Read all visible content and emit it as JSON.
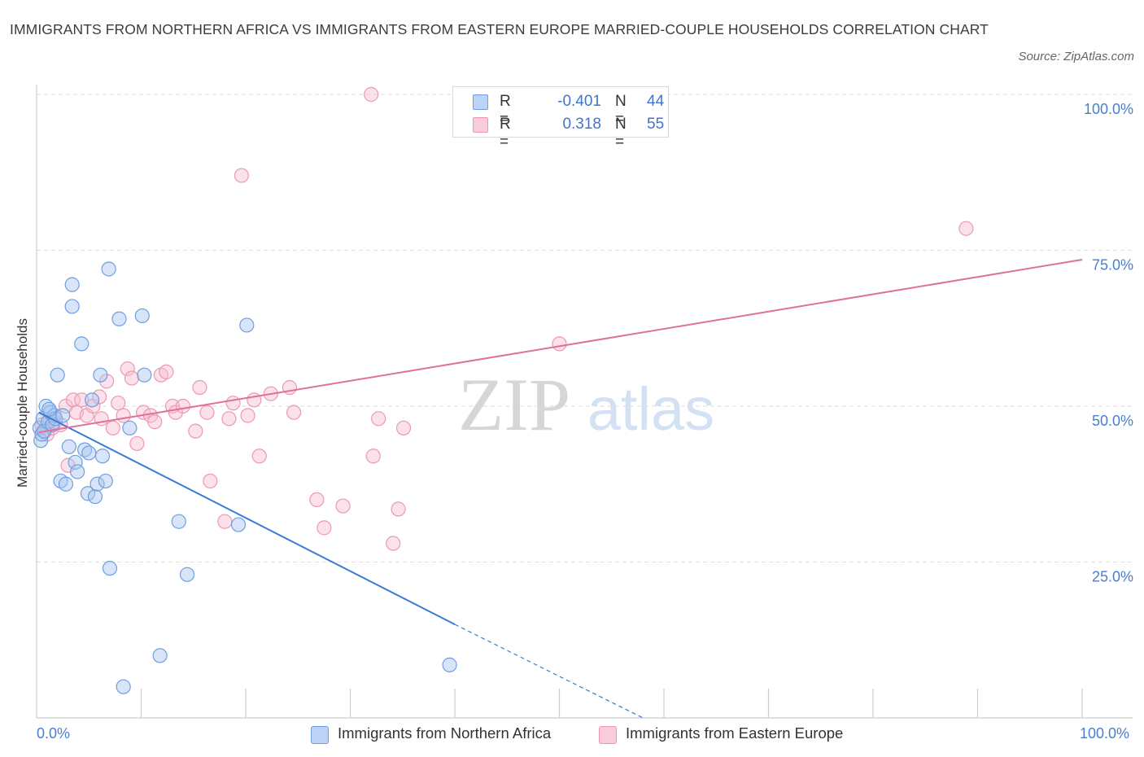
{
  "header": {
    "title": "IMMIGRANTS FROM NORTHERN AFRICA VS IMMIGRANTS FROM EASTERN EUROPE MARRIED-COUPLE HOUSEHOLDS CORRELATION CHART",
    "source": "Source: ZipAtlas.com"
  },
  "colors": {
    "blue_fill": "#a9c6f0",
    "blue_stroke": "#6f9ee0",
    "blue_line": "#3a7bd5",
    "pink_fill": "#f7bfd0",
    "pink_stroke": "#ec98b3",
    "pink_line": "#e0709a",
    "grid": "#dddddd",
    "axis_text": "#4a7fcf"
  },
  "legend": {
    "r_label": "R =",
    "n_label": "N =",
    "series1": {
      "r": "-0.401",
      "n": "44"
    },
    "series2": {
      "r": "0.318",
      "n": "55"
    }
  },
  "watermark": {
    "zip": "ZIP",
    "atlas": "atlas"
  },
  "chart_data": {
    "type": "scatter",
    "title": "IMMIGRANTS FROM NORTHERN AFRICA VS IMMIGRANTS FROM EASTERN EUROPE MARRIED-COUPLE HOUSEHOLDS CORRELATION CHART",
    "xlabel": "",
    "ylabel": "Married-couple Households",
    "xlim": [
      0,
      100
    ],
    "ylim": [
      0,
      100
    ],
    "x_tick_labels": [
      "0.0%",
      "100.0%"
    ],
    "y_ticks": [
      25,
      50,
      75,
      100
    ],
    "y_tick_labels": [
      "25.0%",
      "50.0%",
      "75.0%",
      "100.0%"
    ],
    "grid": true,
    "legend_position": "top-center",
    "series": [
      {
        "name": "Immigrants from Northern Africa",
        "color": "#a9c6f0",
        "r": -0.401,
        "n": 44,
        "trend": {
          "x0": 0.2,
          "y0": 49.0,
          "x1": 40.0,
          "y1": 15.0,
          "dash_to_x": 58.0,
          "dash_to_y": 0.0
        },
        "points": [
          [
            0.3,
            46.5
          ],
          [
            0.4,
            44.5
          ],
          [
            0.5,
            45.5
          ],
          [
            0.6,
            48.0
          ],
          [
            0.7,
            46.0
          ],
          [
            0.9,
            50.0
          ],
          [
            1.1,
            47.5
          ],
          [
            1.3,
            49.0
          ],
          [
            1.5,
            47.0
          ],
          [
            1.7,
            48.5
          ],
          [
            1.8,
            48.0
          ],
          [
            2.0,
            55.0
          ],
          [
            2.3,
            38.0
          ],
          [
            2.5,
            48.5
          ],
          [
            2.8,
            37.5
          ],
          [
            3.1,
            43.5
          ],
          [
            3.4,
            69.5
          ],
          [
            3.4,
            66.0
          ],
          [
            3.7,
            41.0
          ],
          [
            3.9,
            39.5
          ],
          [
            4.3,
            60.0
          ],
          [
            4.6,
            43.0
          ],
          [
            4.9,
            36.0
          ],
          [
            5.0,
            42.5
          ],
          [
            5.3,
            51.0
          ],
          [
            5.6,
            35.5
          ],
          [
            5.8,
            37.5
          ],
          [
            6.1,
            55.0
          ],
          [
            6.3,
            42.0
          ],
          [
            6.6,
            38.0
          ],
          [
            6.9,
            72.0
          ],
          [
            7.0,
            24.0
          ],
          [
            7.9,
            64.0
          ],
          [
            8.3,
            5.0
          ],
          [
            8.9,
            46.5
          ],
          [
            10.1,
            64.5
          ],
          [
            10.3,
            55.0
          ],
          [
            11.8,
            10.0
          ],
          [
            13.6,
            31.5
          ],
          [
            14.4,
            23.0
          ],
          [
            19.3,
            31.0
          ],
          [
            20.1,
            63.0
          ],
          [
            39.5,
            8.5
          ],
          [
            1.2,
            49.5
          ]
        ]
      },
      {
        "name": "Immigrants from Eastern Europe",
        "color": "#f7bfd0",
        "r": 0.318,
        "n": 55,
        "trend": {
          "x0": 0.2,
          "y0": 45.8,
          "x1": 100.0,
          "y1": 73.5
        },
        "points": [
          [
            0.5,
            47.0
          ],
          [
            0.8,
            46.0
          ],
          [
            1.0,
            45.5
          ],
          [
            1.3,
            48.0
          ],
          [
            1.5,
            46.5
          ],
          [
            1.8,
            47.5
          ],
          [
            2.3,
            47.0
          ],
          [
            2.8,
            50.0
          ],
          [
            3.0,
            40.5
          ],
          [
            3.5,
            51.0
          ],
          [
            3.8,
            49.0
          ],
          [
            4.3,
            51.0
          ],
          [
            4.8,
            48.5
          ],
          [
            5.4,
            50.0
          ],
          [
            6.0,
            51.5
          ],
          [
            6.2,
            48.0
          ],
          [
            6.7,
            54.0
          ],
          [
            7.3,
            46.5
          ],
          [
            7.8,
            50.5
          ],
          [
            8.3,
            48.5
          ],
          [
            8.7,
            56.0
          ],
          [
            9.1,
            54.5
          ],
          [
            9.6,
            44.0
          ],
          [
            10.2,
            49.0
          ],
          [
            10.9,
            48.5
          ],
          [
            11.3,
            47.5
          ],
          [
            11.9,
            55.0
          ],
          [
            12.4,
            55.5
          ],
          [
            13.0,
            50.0
          ],
          [
            13.3,
            49.0
          ],
          [
            14.0,
            50.0
          ],
          [
            15.2,
            46.0
          ],
          [
            15.6,
            53.0
          ],
          [
            16.3,
            49.0
          ],
          [
            16.6,
            38.0
          ],
          [
            18.0,
            31.5
          ],
          [
            18.4,
            48.0
          ],
          [
            18.8,
            50.5
          ],
          [
            19.6,
            87.0
          ],
          [
            20.2,
            48.5
          ],
          [
            20.8,
            51.0
          ],
          [
            21.3,
            42.0
          ],
          [
            22.4,
            52.0
          ],
          [
            24.2,
            53.0
          ],
          [
            24.6,
            49.0
          ],
          [
            26.8,
            35.0
          ],
          [
            27.5,
            30.5
          ],
          [
            29.3,
            34.0
          ],
          [
            32.0,
            100.0
          ],
          [
            32.2,
            42.0
          ],
          [
            32.7,
            48.0
          ],
          [
            34.1,
            28.0
          ],
          [
            34.6,
            33.5
          ],
          [
            35.1,
            46.5
          ],
          [
            50.0,
            60.0
          ],
          [
            88.9,
            78.5
          ]
        ]
      }
    ]
  }
}
